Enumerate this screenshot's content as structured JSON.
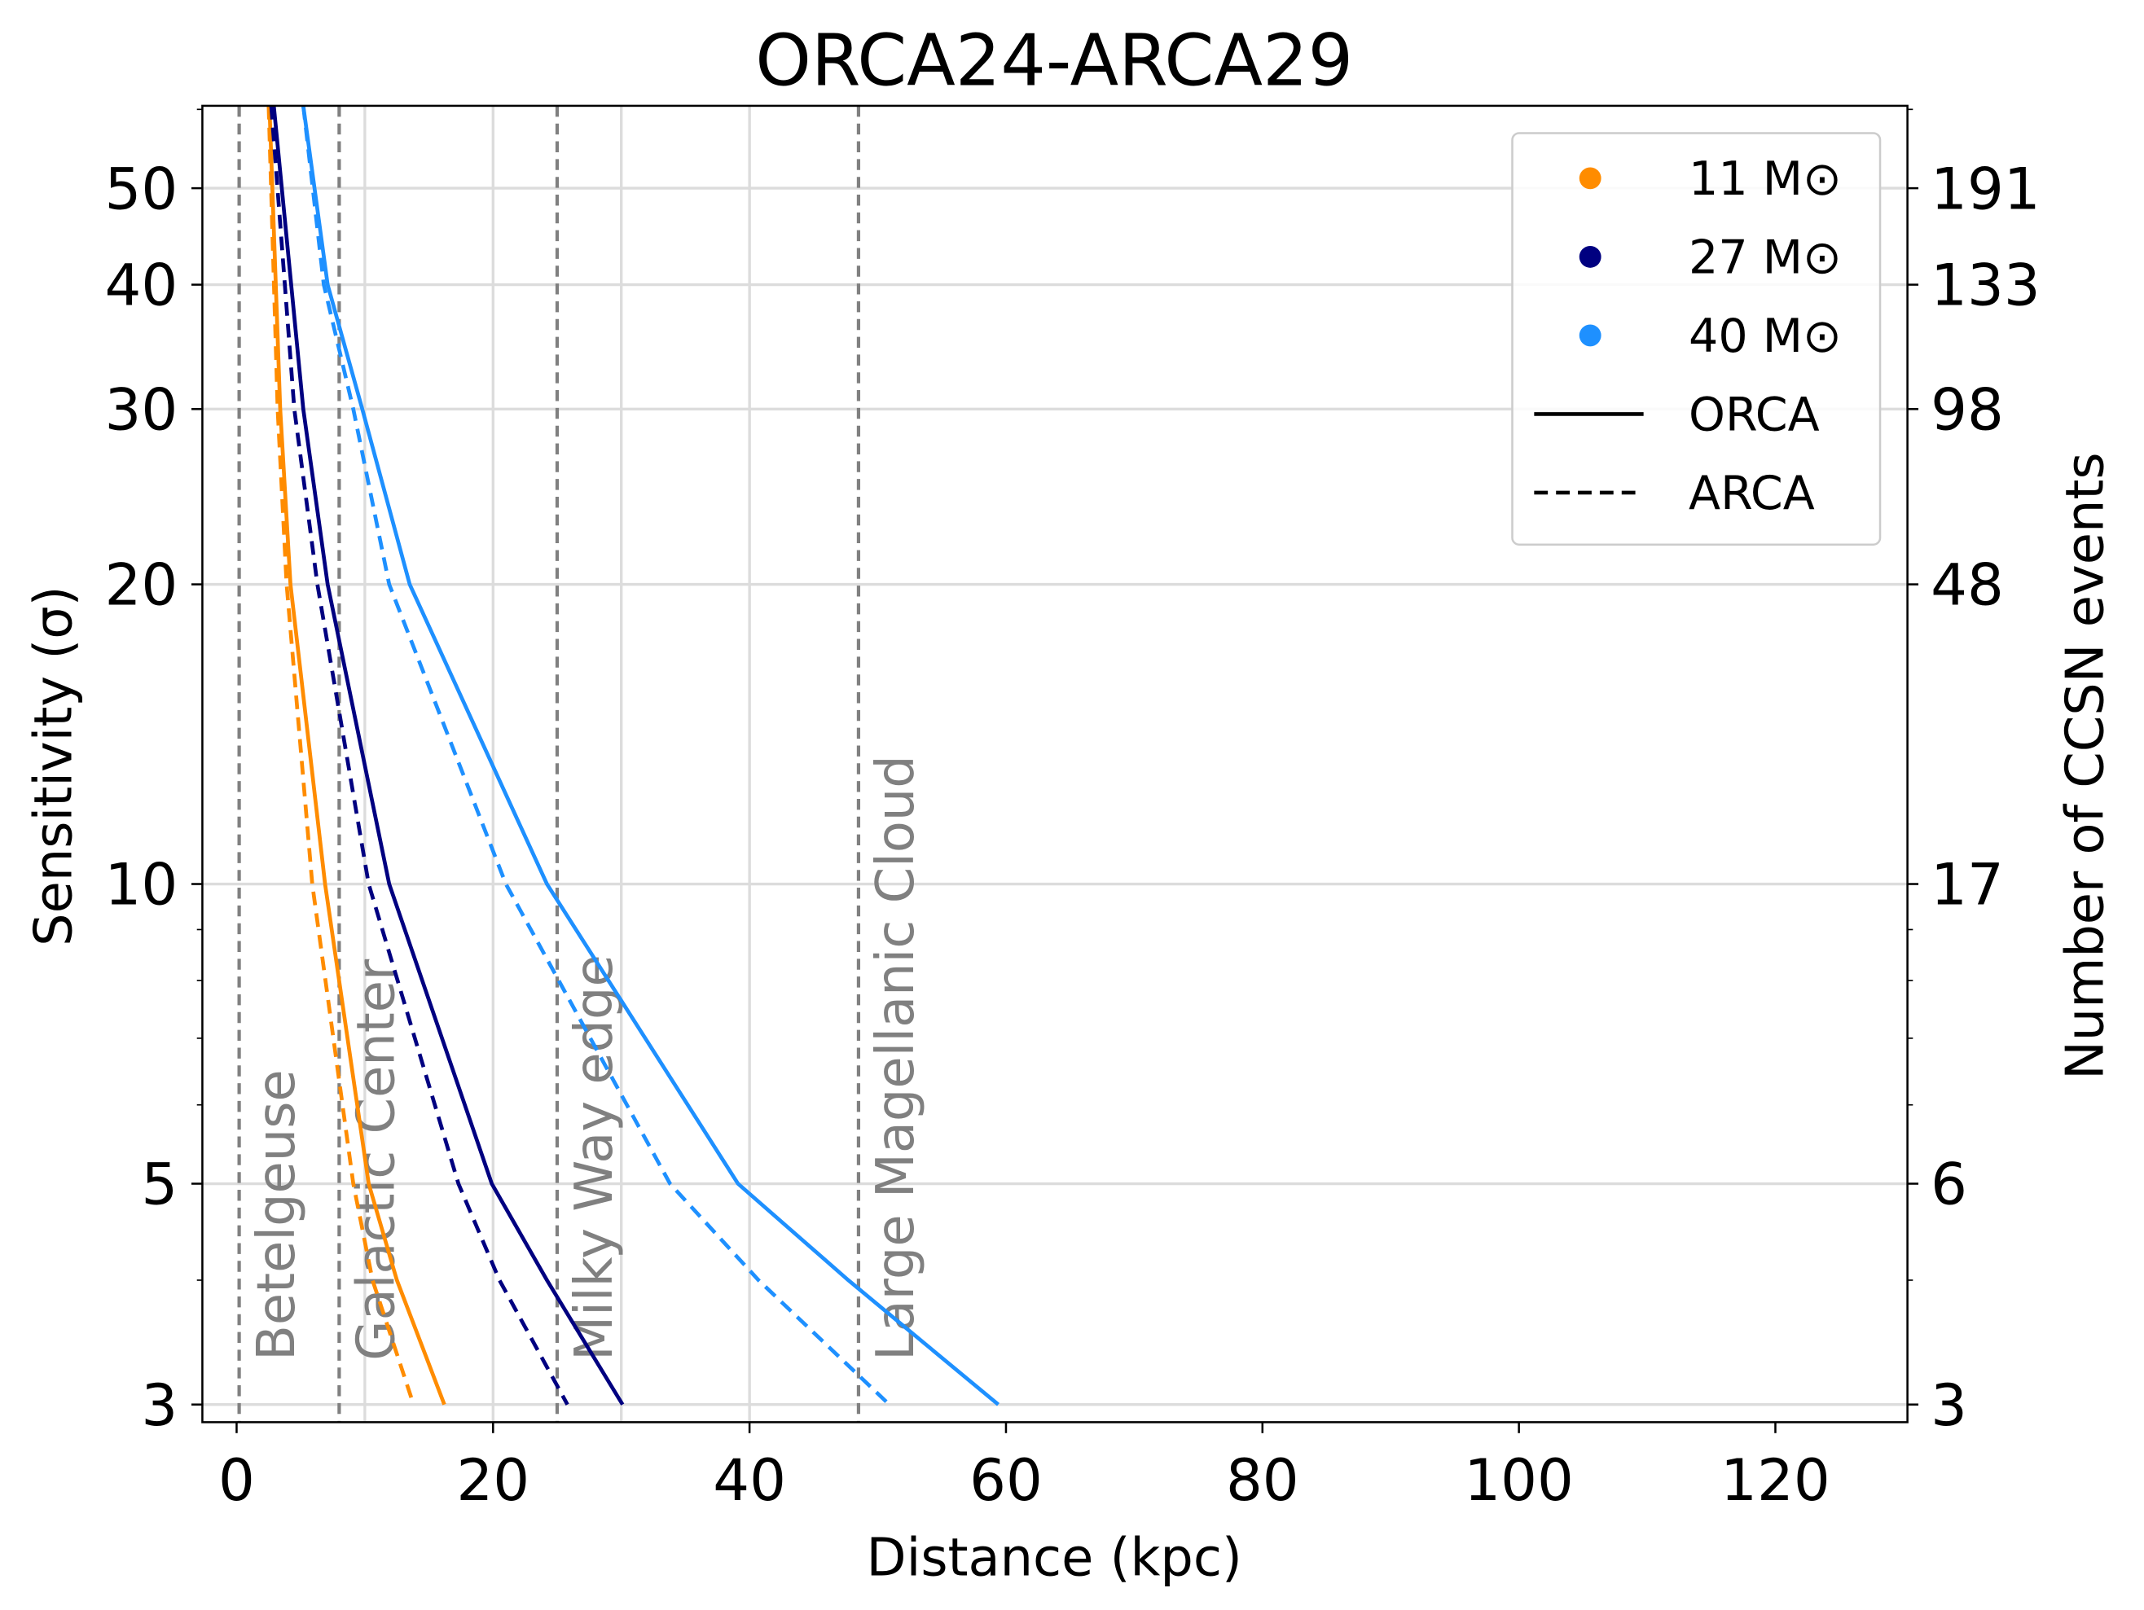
{
  "chart_data": {
    "type": "line",
    "title": "ORCA24-ARCA29",
    "xlabel": "Distance (kpc)",
    "ylabel": "Sensitivity (σ)",
    "y2label": "Number of CCSN events",
    "xlim": [
      -2.67,
      130.3
    ],
    "xticks": [
      0,
      20,
      40,
      60,
      80,
      100,
      120
    ],
    "xgrid": [
      10,
      20,
      30,
      40
    ],
    "ylim": [
      2.88,
      60.5
    ],
    "log_y": true,
    "yticks": [
      3,
      5,
      10,
      20,
      30,
      40,
      50
    ],
    "yminorticks": [
      4,
      6,
      7,
      8,
      9,
      60
    ],
    "y2ticks": [
      3,
      6,
      17,
      48,
      98,
      133,
      191
    ],
    "grid": true,
    "legend_position": "upper right",
    "legend": [
      {
        "label": "11 M⊙",
        "color": "#ff8c00",
        "marker": "dot"
      },
      {
        "label": "27 M⊙",
        "color": "#000080",
        "marker": "dot"
      },
      {
        "label": "40 M⊙",
        "color": "#1e90ff",
        "marker": "dot"
      },
      {
        "label": "ORCA",
        "color": "#000000",
        "dashed": false
      },
      {
        "label": "ARCA",
        "color": "#000000",
        "dashed": true
      }
    ],
    "annotations": [
      {
        "text": "Betelgeuse",
        "x": 0.2
      },
      {
        "text": "Galactic Center",
        "x": 8
      },
      {
        "text": "Milky Way edge",
        "x": 25
      },
      {
        "text": "Large Magellanic Cloud",
        "x": 48.5
      }
    ],
    "series": [
      {
        "color": "#ff8c00",
        "dashed": false,
        "x": [
          2.56,
          3.4,
          4.2,
          6.9,
          10.3,
          12.5,
          16.2
        ],
        "values": [
          60.5,
          30,
          20,
          10,
          5,
          4,
          3
        ]
      },
      {
        "color": "#ff8c00",
        "dashed": true,
        "x": [
          2.5,
          3.2,
          3.9,
          5.9,
          9.1,
          10.6,
          13.8
        ],
        "values": [
          60.5,
          30,
          20,
          10,
          5,
          4,
          3
        ]
      },
      {
        "color": "#000080",
        "dashed": false,
        "x": [
          2.9,
          5.2,
          7.1,
          11.9,
          19.9,
          24.2,
          30.1
        ],
        "values": [
          60.5,
          30,
          20,
          10,
          5,
          4,
          3
        ]
      },
      {
        "color": "#000080",
        "dashed": true,
        "x": [
          2.7,
          4.5,
          6.3,
          10.3,
          17.3,
          20.5,
          25.8
        ],
        "values": [
          60.5,
          30,
          20,
          10,
          5,
          4,
          3
        ]
      },
      {
        "color": "#1e90ff",
        "dashed": false,
        "x": [
          5.2,
          7.1,
          9.8,
          13.5,
          24.2,
          39.1,
          47.7,
          59.4
        ],
        "values": [
          60.5,
          40,
          30,
          20,
          10,
          5,
          4,
          3
        ]
      },
      {
        "color": "#1e90ff",
        "dashed": true,
        "x": [
          5.2,
          6.8,
          9.1,
          11.9,
          21,
          33.8,
          40.7,
          50.9
        ],
        "values": [
          60.5,
          40,
          30,
          20,
          10,
          5,
          4,
          3
        ]
      }
    ]
  }
}
